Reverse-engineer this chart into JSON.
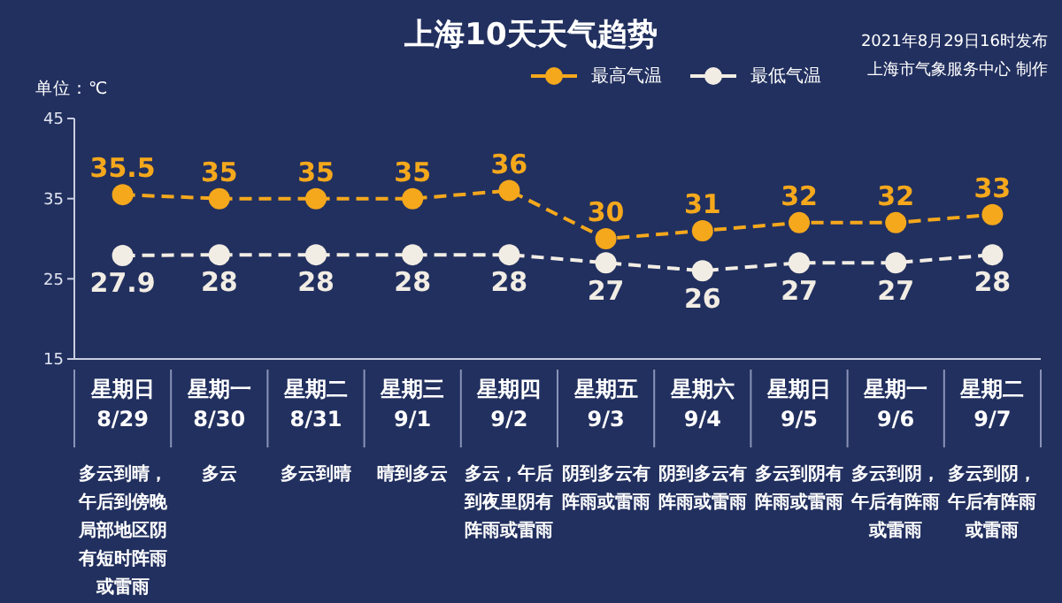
{
  "chart_data": {
    "type": "line",
    "title": "上海10天天气趋势",
    "ylabel": "单位：℃",
    "categories": [
      "星期日 8/29",
      "星期一 8/30",
      "星期二 8/31",
      "星期三 9/1",
      "星期四 9/2",
      "星期五 9/3",
      "星期六 9/4",
      "星期日 9/5",
      "星期一 9/6",
      "星期二 9/7"
    ],
    "series": [
      {
        "name": "最高气温",
        "color": "#f5a81c",
        "values": [
          35.5,
          35,
          35,
          35,
          36,
          30,
          31,
          32,
          32,
          33
        ]
      },
      {
        "name": "最低气温",
        "color": "#f2ede4",
        "values": [
          27.9,
          28,
          28,
          28,
          28,
          27,
          26,
          27,
          27,
          28
        ]
      }
    ],
    "ylim": [
      15,
      45
    ],
    "yticks": [
      15,
      25,
      35,
      45
    ],
    "grid": false,
    "legend": "top right",
    "marker": "circle",
    "line_style": "dashed",
    "data_labels": true,
    "annotations": [
      "2021年8月29日16时发布",
      "上海市气象服务中心 制作",
      "多云到晴，午后到傍晚局部地区阴有短时阵雨或雷雨",
      "多云",
      "多云到晴",
      "晴到多云",
      "多云，午后到夜里阴有阵雨或雷雨",
      "阴到多云有阵雨或雷雨",
      "阴到多云有阵雨或雷雨",
      "多云到阴有阵雨或雷雨",
      "多云到阴，午后有阵雨或雷雨",
      "多云到阴，午后有阵雨或雷雨"
    ]
  }
}
